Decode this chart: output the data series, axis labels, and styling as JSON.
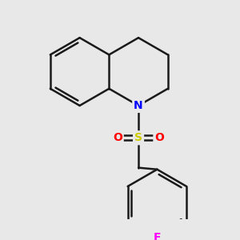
{
  "background_color": "#e8e8e8",
  "bond_color": "#1a1a1a",
  "N_color": "#0000ff",
  "S_color": "#cccc00",
  "O_color": "#ff0000",
  "F_color": "#ff00ff",
  "bond_width": 1.8,
  "figsize": [
    3.0,
    3.0
  ],
  "dpi": 100,
  "xlim": [
    0,
    10
  ],
  "ylim": [
    0,
    10
  ]
}
